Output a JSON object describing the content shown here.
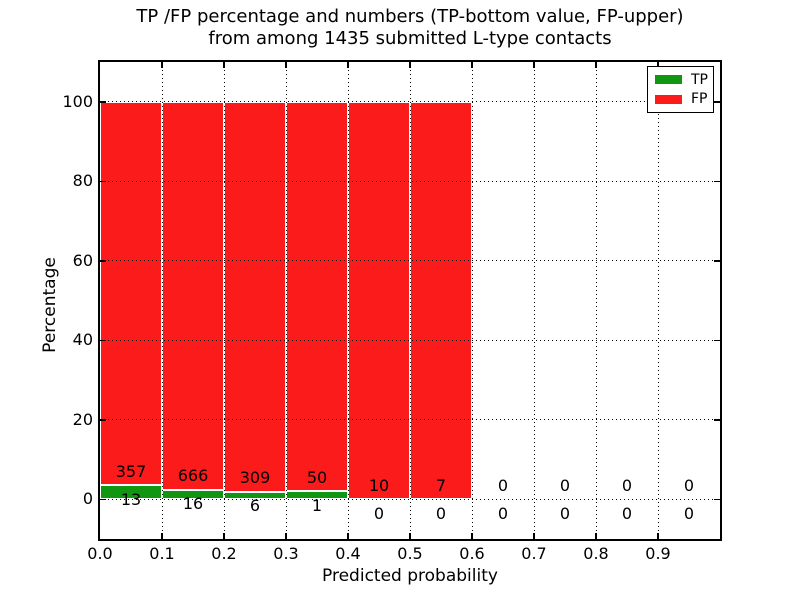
{
  "chart_data": {
    "type": "bar",
    "stacked": true,
    "title_line1": "TP /FP percentage and numbers (TP-bottom value, FP-upper)",
    "title_line2": "from among 1435 submitted L-type contacts",
    "xlabel": "Predicted probability",
    "ylabel": "Percentage",
    "xlim": [
      0.0,
      1.0
    ],
    "ylim": [
      -10,
      110
    ],
    "x_ticks": [
      "0.0",
      "0.1",
      "0.2",
      "0.3",
      "0.4",
      "0.5",
      "0.6",
      "0.7",
      "0.8",
      "0.9"
    ],
    "y_ticks": [
      "0",
      "20",
      "40",
      "60",
      "80",
      "100"
    ],
    "y_tick_values": [
      0,
      20,
      40,
      60,
      80,
      100
    ],
    "bin_width": 0.1,
    "total_contacts": 1435,
    "bins": [
      {
        "x_start": 0.0,
        "tp": 13,
        "fp": 357,
        "tp_percent": 3.5
      },
      {
        "x_start": 0.1,
        "tp": 16,
        "fp": 666,
        "tp_percent": 2.3
      },
      {
        "x_start": 0.2,
        "tp": 6,
        "fp": 309,
        "tp_percent": 1.9
      },
      {
        "x_start": 0.3,
        "tp": 1,
        "fp": 50,
        "tp_percent": 2.0
      },
      {
        "x_start": 0.4,
        "tp": 0,
        "fp": 10,
        "tp_percent": 0
      },
      {
        "x_start": 0.5,
        "tp": 0,
        "fp": 7,
        "tp_percent": 0
      },
      {
        "x_start": 0.6,
        "tp": 0,
        "fp": 0,
        "tp_percent": 0
      },
      {
        "x_start": 0.7,
        "tp": 0,
        "fp": 0,
        "tp_percent": 0
      },
      {
        "x_start": 0.8,
        "tp": 0,
        "fp": 0,
        "tp_percent": 0
      },
      {
        "x_start": 0.9,
        "tp": 0,
        "fp": 0,
        "tp_percent": 0
      }
    ],
    "legend": [
      {
        "label": "TP",
        "color": "#119611"
      },
      {
        "label": "FP",
        "color": "#fb1b1b"
      }
    ],
    "legend_position": "upper right",
    "grid": true,
    "colors": {
      "tp": "#119611",
      "fp": "#fb1b1b",
      "grid": "#000000",
      "bar_edge": "#ffffff",
      "spine": "#000000",
      "background": "#ffffff"
    }
  }
}
